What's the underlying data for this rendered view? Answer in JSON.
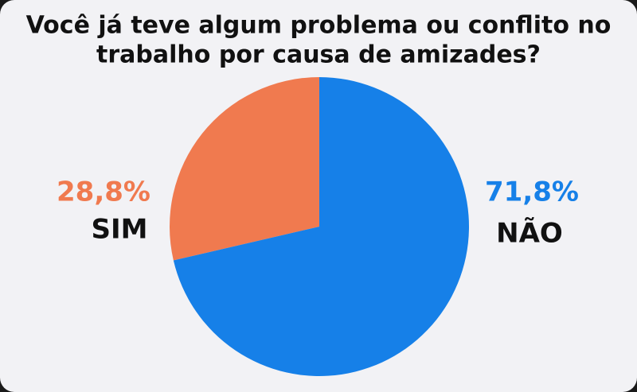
{
  "chart_data": {
    "type": "pie",
    "title": [
      "Você já teve algum problema ou conflito no",
      "trabalho por causa de amizades?"
    ],
    "categories": [
      "SIM",
      "NÃO"
    ],
    "values": [
      28.8,
      71.8
    ],
    "value_labels": [
      "28,8%",
      "71,8%"
    ],
    "colors": [
      "#f07a4f",
      "#1680e8"
    ]
  }
}
